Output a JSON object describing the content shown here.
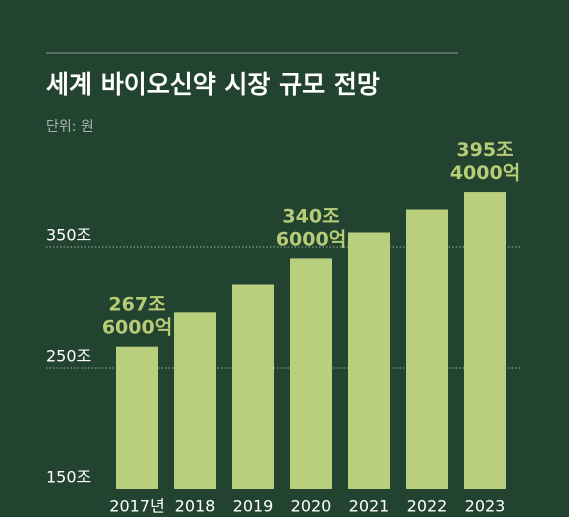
{
  "chart_data": {
    "type": "bar",
    "title": "세계 바이오신약 시장 규모 전망",
    "subtitle": "단위: 원",
    "categories": [
      "2017년",
      "2018",
      "2019",
      "2020",
      "2021",
      "2022",
      "2023"
    ],
    "values": [
      267.6,
      296,
      319,
      340.6,
      362,
      381,
      395.4
    ],
    "value_labels": [
      "267조 6000억",
      null,
      null,
      "340조 6000억",
      null,
      null,
      "395조 4000억"
    ],
    "color": "#b9cf7e",
    "ylim": [
      150,
      400
    ],
    "yticks": [
      {
        "value": 150,
        "label": "150조"
      },
      {
        "value": 250,
        "label": "250조"
      },
      {
        "value": 350,
        "label": "350조"
      }
    ],
    "grid": true
  }
}
